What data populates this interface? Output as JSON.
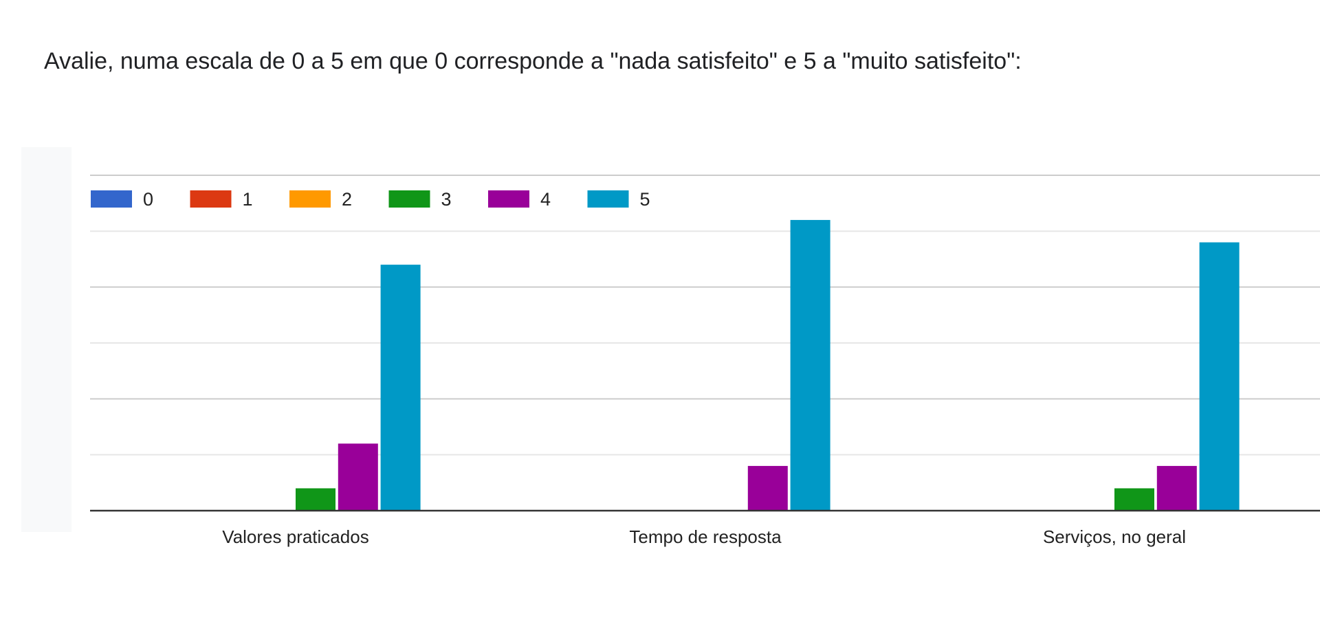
{
  "chart_data": {
    "type": "bar",
    "title": "Avalie, numa escala de 0 a 5 em que 0 corresponde a \"nada satisfeito\" e 5 a \"muito satisfeito\":",
    "categories": [
      "Valores praticados",
      "Tempo de resposta",
      "Serviços, no geral"
    ],
    "series": [
      {
        "name": "0",
        "color": "#3366cc",
        "values": [
          0,
          0,
          0
        ]
      },
      {
        "name": "1",
        "color": "#dc3912",
        "values": [
          0,
          0,
          0
        ]
      },
      {
        "name": "2",
        "color": "#ff9900",
        "values": [
          0,
          0,
          0
        ]
      },
      {
        "name": "3",
        "color": "#109618",
        "values": [
          1,
          0,
          1
        ]
      },
      {
        "name": "4",
        "color": "#990099",
        "values": [
          3,
          2,
          2
        ]
      },
      {
        "name": "5",
        "color": "#0099c6",
        "values": [
          11,
          13,
          12
        ]
      }
    ],
    "xlabel": "",
    "ylabel": "",
    "ylim": [
      0,
      15
    ],
    "grid_step": 2.5,
    "grid": true,
    "legend_position": "top-left"
  }
}
